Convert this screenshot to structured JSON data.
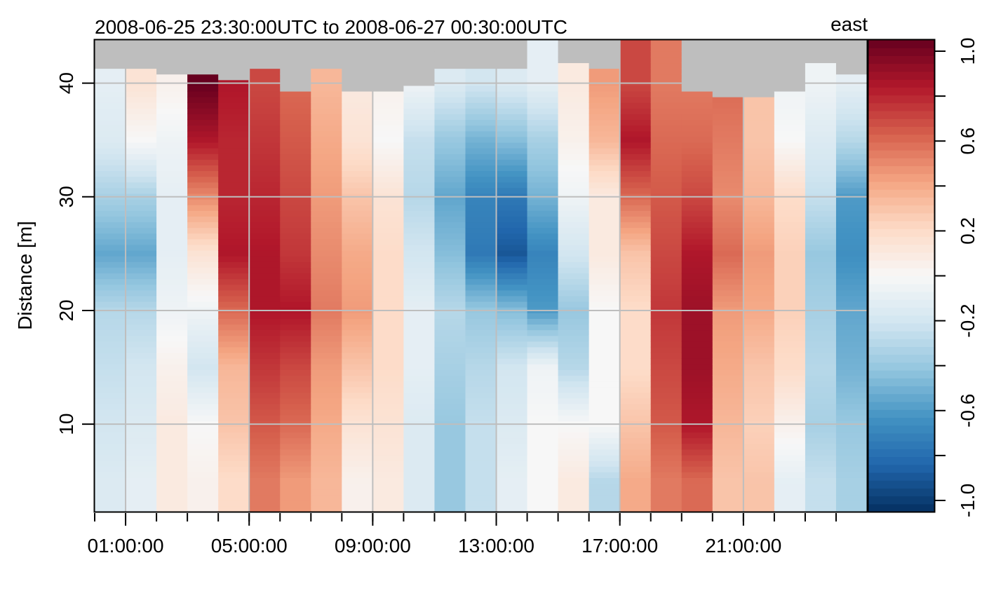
{
  "chart_data": {
    "type": "heatmap",
    "title": "2008-06-25 23:30:00UTC to 2008-06-27 00:30:00UTC",
    "corner_label": "east",
    "ylabel": "Distance [m]",
    "x_start": "2008-06-25 23:30",
    "x_end": "2008-06-27 00:30",
    "x_tick_labels": [
      "01:00:00",
      "05:00:00",
      "09:00:00",
      "13:00:00",
      "17:00:00",
      "21:00:00"
    ],
    "x_tick_hours": [
      1,
      5,
      9,
      13,
      17,
      21
    ],
    "x_minor_ticks_hours": [
      0,
      1,
      2,
      3,
      4,
      5,
      6,
      7,
      8,
      9,
      10,
      11,
      12,
      13,
      14,
      15,
      16,
      17,
      18,
      19,
      20,
      21,
      22,
      23,
      24
    ],
    "ylim": [
      2.3,
      43.8
    ],
    "y_ticks": [
      10,
      20,
      30,
      40
    ],
    "grid": true,
    "missing_color": "#bebebe",
    "zlim": [
      -1.05,
      1.05
    ],
    "colorbar_ticks": [
      1.0,
      0.8,
      0.6,
      0.4,
      0.2,
      0.0,
      -0.2,
      -0.4,
      -0.6,
      -0.8,
      -1.0
    ],
    "colorbar_labels": [
      {
        "value": 1.0,
        "text": "1.0"
      },
      {
        "value": 0.6,
        "text": "0.6"
      },
      {
        "value": 0.2,
        "text": "0.2"
      },
      {
        "value": -0.2,
        "text": "-0.2"
      },
      {
        "value": -0.6,
        "text": "-0.6"
      },
      {
        "value": -1.0,
        "text": "-1.0"
      }
    ],
    "colormap": [
      "#053061",
      "#2166ac",
      "#4393c3",
      "#92c5de",
      "#d1e5f0",
      "#f7f7f7",
      "#fddbc7",
      "#f4a582",
      "#d6604d",
      "#b2182b",
      "#67001f"
    ],
    "profile_times_hours": [
      23.5,
      0.5,
      1.5,
      2.5,
      3.5,
      4.5,
      5.5,
      6.5,
      7.5,
      8.5,
      9.5,
      10.5,
      11.5,
      12.5,
      13.5,
      14.5,
      15.5,
      16.5,
      17.5,
      18.5,
      19.5,
      20.5,
      21.5,
      22.5,
      23.5
    ],
    "profile_depth_levels_m": [
      5,
      10,
      15,
      20,
      25,
      30,
      35,
      40
    ],
    "profiles": [
      {
        "time": "23:30",
        "values": [
          -0.15,
          -0.2,
          -0.25,
          -0.3,
          -0.55,
          -0.35,
          -0.15,
          -0.1
        ],
        "top_valid_m": 41.5
      },
      {
        "time": "00:30",
        "values": [
          -0.1,
          -0.15,
          -0.2,
          -0.3,
          -0.55,
          -0.35,
          0.0,
          0.15
        ],
        "top_valid_m": 41.5
      },
      {
        "time": "01:30",
        "values": [
          0.1,
          0.1,
          0.05,
          -0.05,
          -0.1,
          -0.1,
          -0.05,
          0.05
        ],
        "top_valid_m": 41.0
      },
      {
        "time": "02:30",
        "values": [
          0.05,
          0.0,
          -0.2,
          -0.05,
          0.15,
          0.5,
          0.85,
          1.05
        ],
        "top_valid_m": 41.0
      },
      {
        "time": "03:30",
        "values": [
          0.2,
          0.3,
          0.35,
          0.6,
          0.85,
          0.8,
          0.8,
          0.85
        ],
        "top_valid_m": 40.5
      },
      {
        "time": "04:30",
        "values": [
          0.55,
          0.65,
          0.75,
          0.85,
          0.85,
          0.8,
          0.75,
          0.7
        ],
        "top_valid_m": 41.5
      },
      {
        "time": "05:30",
        "values": [
          0.45,
          0.6,
          0.7,
          0.85,
          0.75,
          0.7,
          0.65,
          0.6
        ],
        "top_valid_m": 39.5
      },
      {
        "time": "06:30",
        "values": [
          0.35,
          0.4,
          0.45,
          0.55,
          0.5,
          0.45,
          0.4,
          0.35
        ],
        "top_valid_m": 41.5
      },
      {
        "time": "07:30",
        "values": [
          0.05,
          0.15,
          0.3,
          0.45,
          0.4,
          0.3,
          0.15,
          0.1
        ],
        "top_valid_m": 39.5
      },
      {
        "time": "08:30",
        "values": [
          0.1,
          0.15,
          0.2,
          0.2,
          0.2,
          0.15,
          0.0,
          0.05
        ],
        "top_valid_m": 39.5
      },
      {
        "time": "09:30",
        "values": [
          -0.15,
          -0.15,
          -0.1,
          -0.1,
          -0.2,
          -0.3,
          -0.25,
          -0.05
        ],
        "top_valid_m": 40.0
      },
      {
        "time": "10:30",
        "values": [
          -0.4,
          -0.4,
          -0.35,
          -0.3,
          -0.45,
          -0.55,
          -0.4,
          -0.15
        ],
        "top_valid_m": 41.5
      },
      {
        "time": "11:30",
        "values": [
          -0.25,
          -0.25,
          -0.3,
          -0.4,
          -0.75,
          -0.7,
          -0.5,
          -0.2
        ],
        "top_valid_m": 41.5
      },
      {
        "time": "12:30",
        "values": [
          -0.1,
          -0.15,
          -0.2,
          -0.45,
          -0.9,
          -0.75,
          -0.45,
          -0.15
        ],
        "top_valid_m": 41.5
      },
      {
        "time": "13:30",
        "values": [
          0.0,
          0.0,
          -0.05,
          -0.6,
          -0.7,
          -0.5,
          -0.35,
          -0.1
        ],
        "top_valid_m": 43.8
      },
      {
        "time": "14:30",
        "values": [
          0.1,
          0.0,
          -0.3,
          -0.4,
          -0.2,
          -0.05,
          0.05,
          0.1
        ],
        "top_valid_m": 42.0
      },
      {
        "time": "15:30",
        "values": [
          -0.3,
          0.0,
          0.0,
          0.0,
          0.1,
          0.1,
          0.35,
          0.45
        ],
        "top_valid_m": 41.5
      },
      {
        "time": "16:30",
        "values": [
          0.4,
          0.3,
          0.2,
          0.2,
          0.3,
          0.6,
          0.85,
          0.7
        ],
        "top_valid_m": 43.8
      },
      {
        "time": "17:30",
        "values": [
          0.55,
          0.65,
          0.7,
          0.75,
          0.7,
          0.65,
          0.6,
          0.55
        ],
        "top_valid_m": 43.8
      },
      {
        "time": "18:30",
        "values": [
          0.6,
          0.85,
          0.9,
          0.9,
          0.85,
          0.7,
          0.6,
          0.55
        ],
        "top_valid_m": 39.5
      },
      {
        "time": "19:30",
        "values": [
          0.3,
          0.35,
          0.4,
          0.45,
          0.6,
          0.5,
          0.55,
          0.6
        ],
        "top_valid_m": 39.0
      },
      {
        "time": "20:30",
        "values": [
          0.3,
          0.25,
          0.3,
          0.4,
          0.45,
          0.35,
          0.3,
          0.3
        ],
        "top_valid_m": 39.0
      },
      {
        "time": "21:30",
        "values": [
          -0.1,
          0.05,
          0.2,
          0.25,
          0.25,
          0.2,
          0.0,
          -0.05
        ],
        "top_valid_m": 39.5
      },
      {
        "time": "22:30",
        "values": [
          -0.25,
          -0.35,
          -0.3,
          -0.35,
          -0.4,
          -0.25,
          -0.15,
          -0.05
        ],
        "top_valid_m": 42.0
      },
      {
        "time": "23:30",
        "values": [
          -0.35,
          -0.4,
          -0.5,
          -0.55,
          -0.65,
          -0.6,
          -0.3,
          -0.1
        ],
        "top_valid_m": 41.0
      }
    ]
  }
}
